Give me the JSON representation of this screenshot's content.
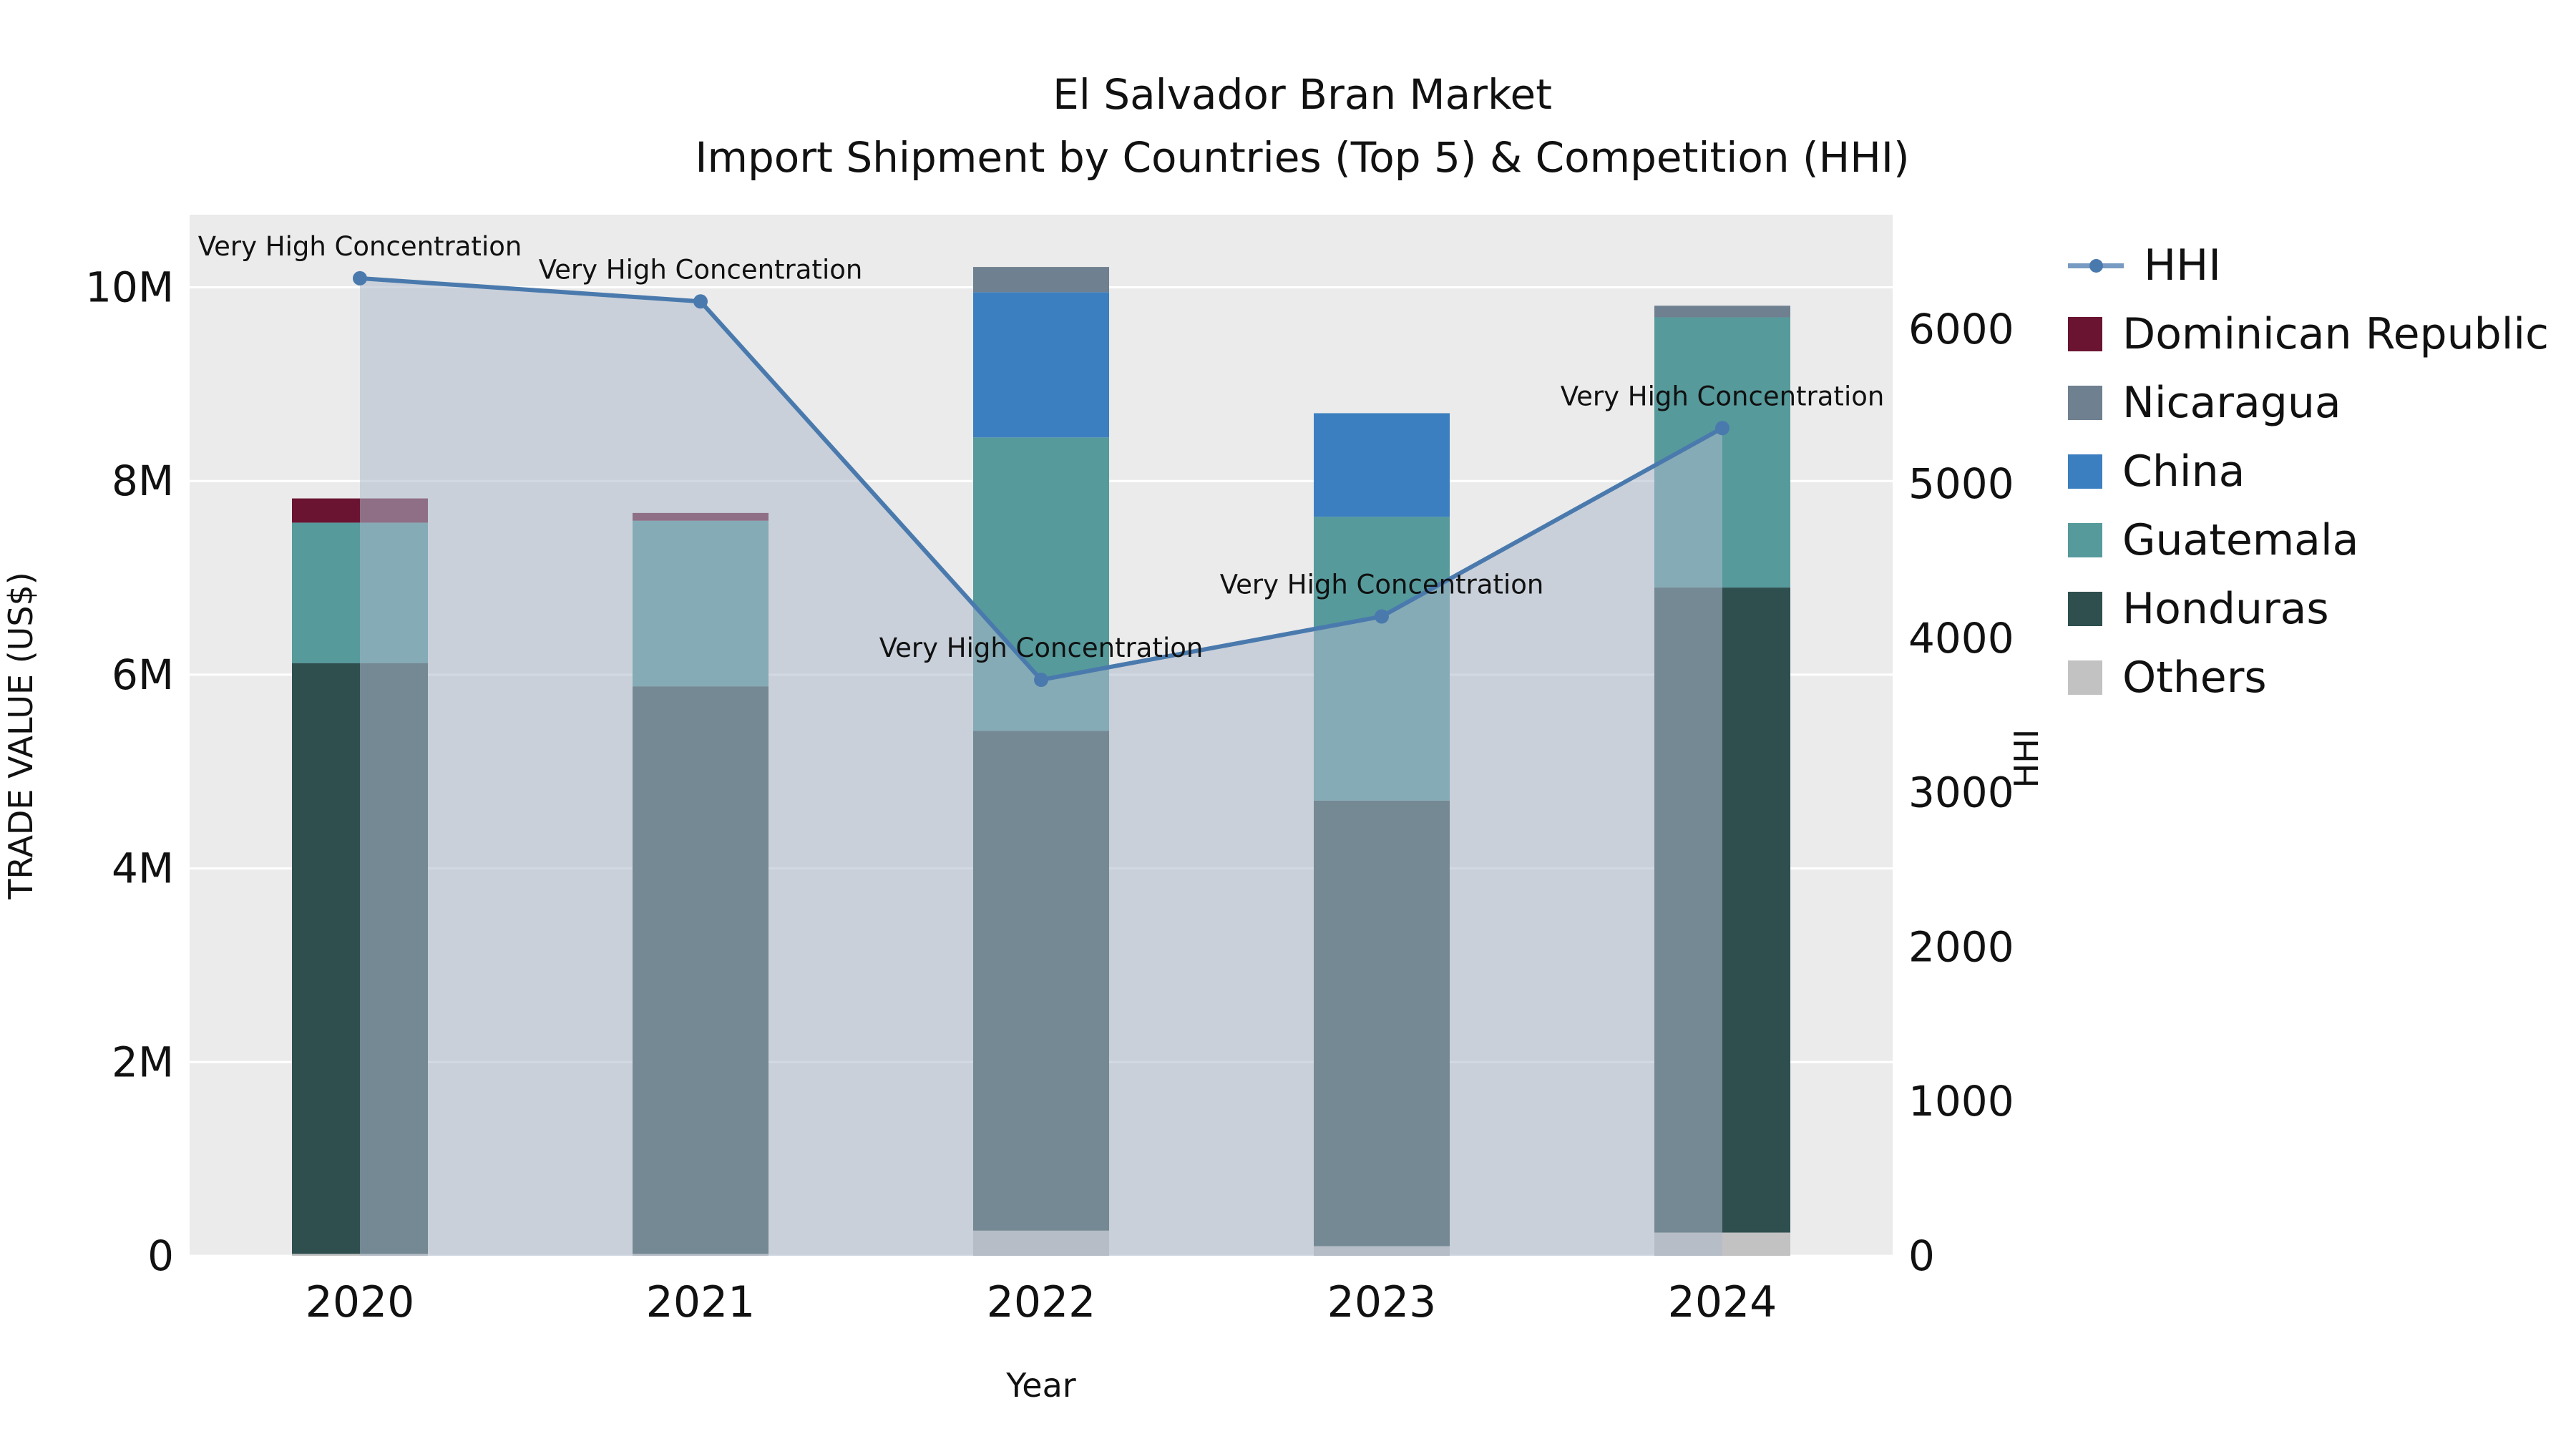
{
  "title": {
    "line1": "El Salvador Bran Market",
    "line2": "Import Shipment by Countries (Top 5) & Competition (HHI)"
  },
  "axes": {
    "x_label": "Year",
    "y_left_label": "TRADE VALUE (US$)",
    "y_right_label": "HHI",
    "y_left_ticks": [
      "0",
      "2M",
      "4M",
      "6M",
      "8M",
      "10M"
    ],
    "y_right_ticks": [
      "0",
      "1000",
      "2000",
      "3000",
      "4000",
      "5000",
      "6000"
    ]
  },
  "colors": {
    "Others": "#c2c2c2",
    "Honduras": "#2f4f4f",
    "Guatemala": "#569a9c",
    "China": "#3c7fc0",
    "Nicaragua": "#6f8090",
    "Dominican Republic": "#6b1432",
    "hhi_line": "#4a7aad",
    "hhi_fill": "rgba(173,186,204,0.55)",
    "plot_bg": "#ebebeb",
    "grid": "#ffffff",
    "text": "#111111"
  },
  "legend": {
    "items": [
      {
        "label": "HHI",
        "type": "line"
      },
      {
        "label": "Dominican Republic",
        "type": "swatch"
      },
      {
        "label": "Nicaragua",
        "type": "swatch"
      },
      {
        "label": "China",
        "type": "swatch"
      },
      {
        "label": "Guatemala",
        "type": "swatch"
      },
      {
        "label": "Honduras",
        "type": "swatch"
      },
      {
        "label": "Others",
        "type": "swatch"
      }
    ]
  },
  "chart_data": {
    "type": "bar",
    "subtype": "stacked-bar-with-line-overlay",
    "title": "El Salvador Bran Market — Import Shipment by Countries (Top 5) & Competition (HHI)",
    "xlabel": "Year",
    "ylabel_left": "TRADE VALUE (US$)",
    "ylabel_right": "HHI",
    "categories": [
      "2020",
      "2021",
      "2022",
      "2023",
      "2024"
    ],
    "bar_value_unit": "million US$",
    "bar_series": [
      {
        "name": "Others",
        "values": [
          0.02,
          0.02,
          0.26,
          0.1,
          0.24
        ]
      },
      {
        "name": "Honduras",
        "values": [
          6.1,
          5.86,
          5.16,
          4.6,
          6.66
        ]
      },
      {
        "name": "Guatemala",
        "values": [
          1.45,
          1.71,
          3.03,
          2.93,
          2.79
        ]
      },
      {
        "name": "China",
        "values": [
          0,
          0,
          1.5,
          1.07,
          0
        ]
      },
      {
        "name": "Nicaragua",
        "values": [
          0,
          0,
          0.26,
          0,
          0.12
        ]
      },
      {
        "name": "Dominican Republic",
        "values": [
          0.25,
          0.08,
          0,
          0,
          0
        ]
      }
    ],
    "line_series": {
      "name": "HHI",
      "axis": "right",
      "values": [
        6330,
        6180,
        3730,
        4140,
        5360
      ],
      "annotations": [
        "Very High Concentration",
        "Very High Concentration",
        "Very High Concentration",
        "Very High Concentration",
        "Very High Concentration"
      ],
      "area_fill": true
    },
    "ylim_left": [
      0,
      10.75
    ],
    "ylim_right": [
      0,
      6742
    ],
    "grid": "horizontal-white-on-gray",
    "legend_position": "right-outside"
  }
}
